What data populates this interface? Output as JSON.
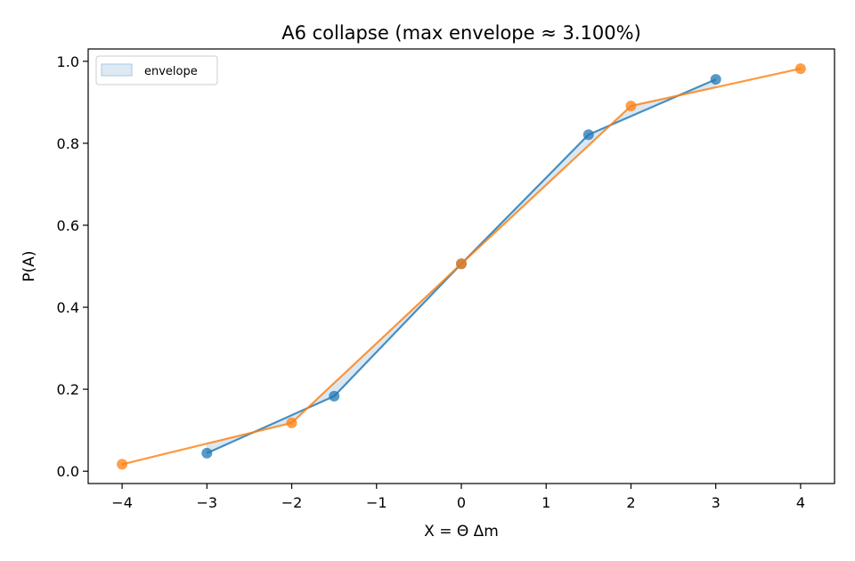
{
  "chart_data": {
    "type": "line",
    "title": "A6 collapse (max envelope ≈ 3.100%)",
    "xlabel": "X = Θ Δm",
    "ylabel": "P(A)",
    "xlim": [
      -4.4,
      4.4
    ],
    "ylim": [
      -0.03,
      1.03
    ],
    "xticks": [
      -4,
      -3,
      -2,
      -1,
      0,
      1,
      2,
      3,
      4
    ],
    "xtick_labels": [
      "−4",
      "−3",
      "−2",
      "−1",
      "0",
      "1",
      "2",
      "3",
      "4"
    ],
    "yticks": [
      0.0,
      0.2,
      0.4,
      0.6,
      0.8,
      1.0
    ],
    "ytick_labels": [
      "0.0",
      "0.2",
      "0.4",
      "0.6",
      "0.8",
      "1.0"
    ],
    "grid": false,
    "legend": {
      "placement": "upper-left",
      "entries": [
        "envelope"
      ]
    },
    "series": [
      {
        "color": "#1f77b4",
        "x": [
          -3,
          -1.5,
          0,
          1.5,
          3
        ],
        "y": [
          0.044,
          0.183,
          0.506,
          0.821,
          0.956
        ]
      },
      {
        "color": "#ff7f0e",
        "x": [
          -4,
          -2,
          0,
          2,
          4
        ],
        "y": [
          0.017,
          0.118,
          0.506,
          0.891,
          0.982
        ]
      }
    ],
    "envelope_color": "#cfe0ef"
  }
}
